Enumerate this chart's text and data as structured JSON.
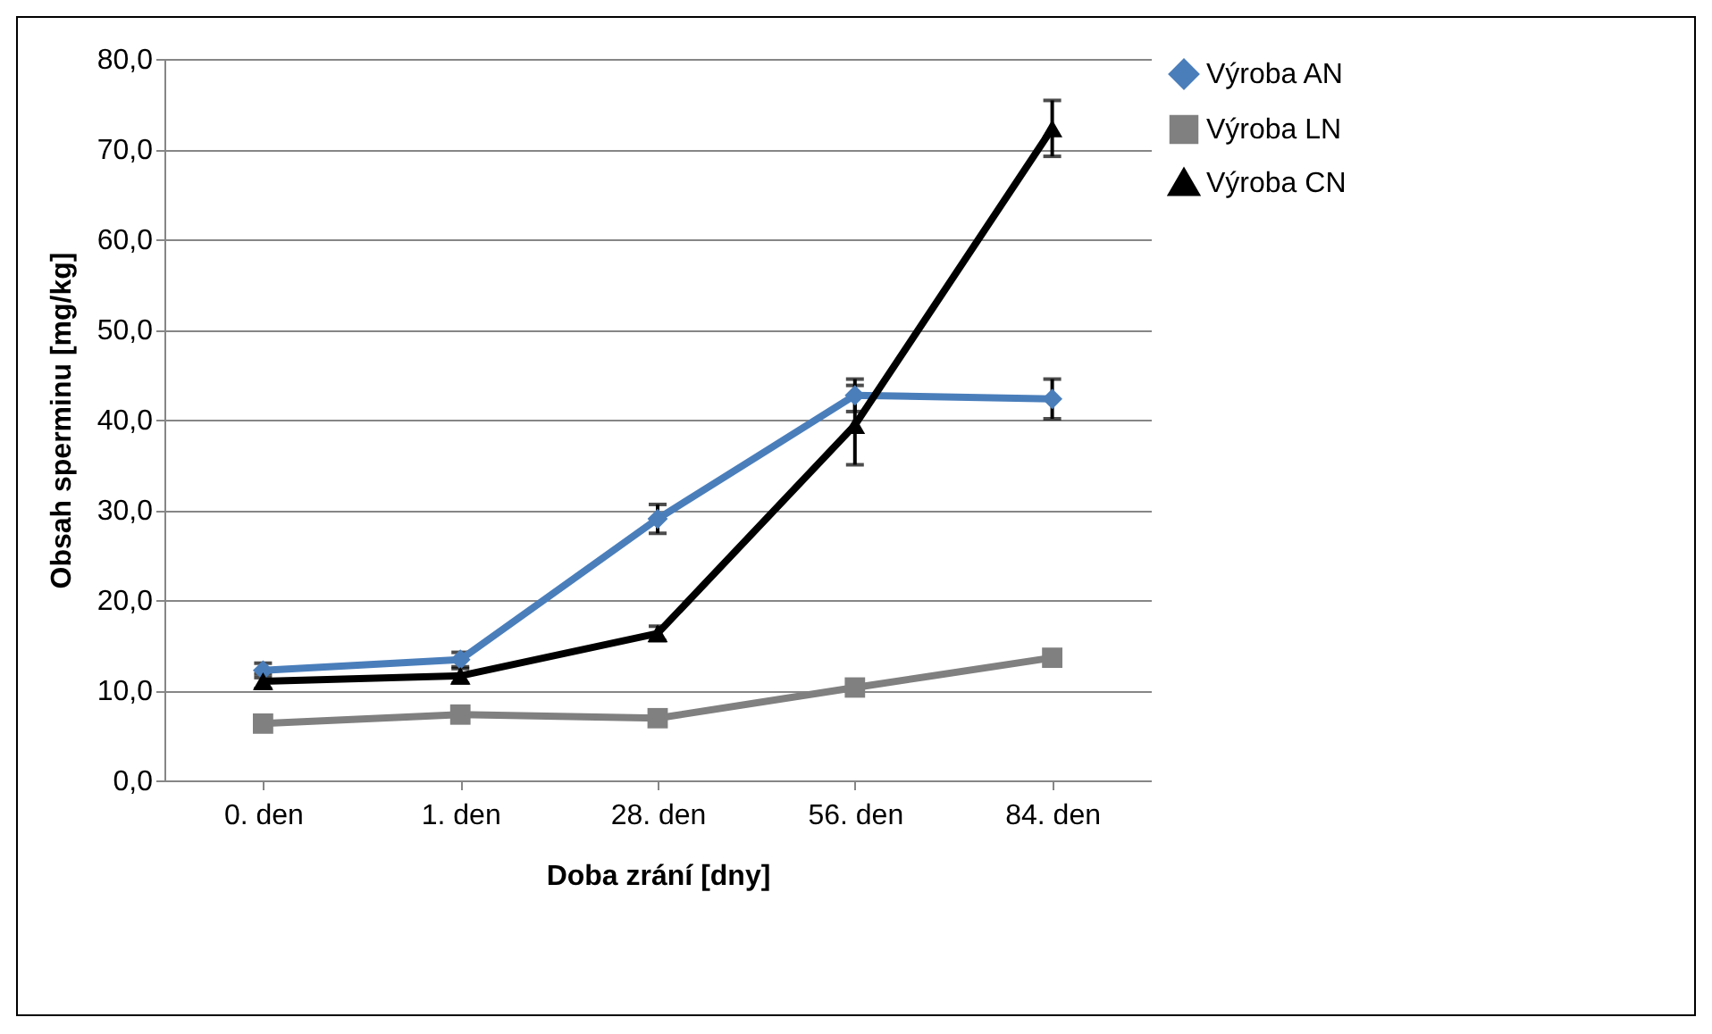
{
  "chart_data": {
    "type": "line",
    "xlabel": "Doba zrání [dny]",
    "ylabel": "Obsah sperminu [mg/kg]",
    "categories": [
      "0. den",
      "1. den",
      "28. den",
      "56. den",
      "84. den"
    ],
    "series": [
      {
        "name": "Výroba AN",
        "color": "#4a7ebb",
        "marker": "diamond",
        "values": [
          12.2,
          13.4,
          29.0,
          42.7,
          42.3
        ],
        "errors": [
          0.8,
          0.8,
          1.6,
          1.8,
          2.2
        ]
      },
      {
        "name": "Výroba LN",
        "color": "#808080",
        "marker": "square",
        "values": [
          6.3,
          7.3,
          6.9,
          10.3,
          13.6
        ],
        "errors": [
          0.5,
          0.5,
          0.5,
          0.5,
          0.5
        ]
      },
      {
        "name": "Výroba CN",
        "color": "#000000",
        "marker": "triangle",
        "values": [
          11.0,
          11.6,
          16.3,
          39.4,
          72.3
        ],
        "errors": [
          0.8,
          0.8,
          0.8,
          4.4,
          3.1
        ]
      }
    ],
    "ylim": [
      0,
      80
    ],
    "yticks": [
      {
        "value": 0,
        "label": "0,0"
      },
      {
        "value": 10,
        "label": "10,0"
      },
      {
        "value": 20,
        "label": "20,0"
      },
      {
        "value": 30,
        "label": "30,0"
      },
      {
        "value": 40,
        "label": "40,0"
      },
      {
        "value": 50,
        "label": "50,0"
      },
      {
        "value": 60,
        "label": "60,0"
      },
      {
        "value": 70,
        "label": "70,0"
      },
      {
        "value": 80,
        "label": "80,0"
      }
    ],
    "grid": "y",
    "legend": "right",
    "line_style": "solid"
  }
}
